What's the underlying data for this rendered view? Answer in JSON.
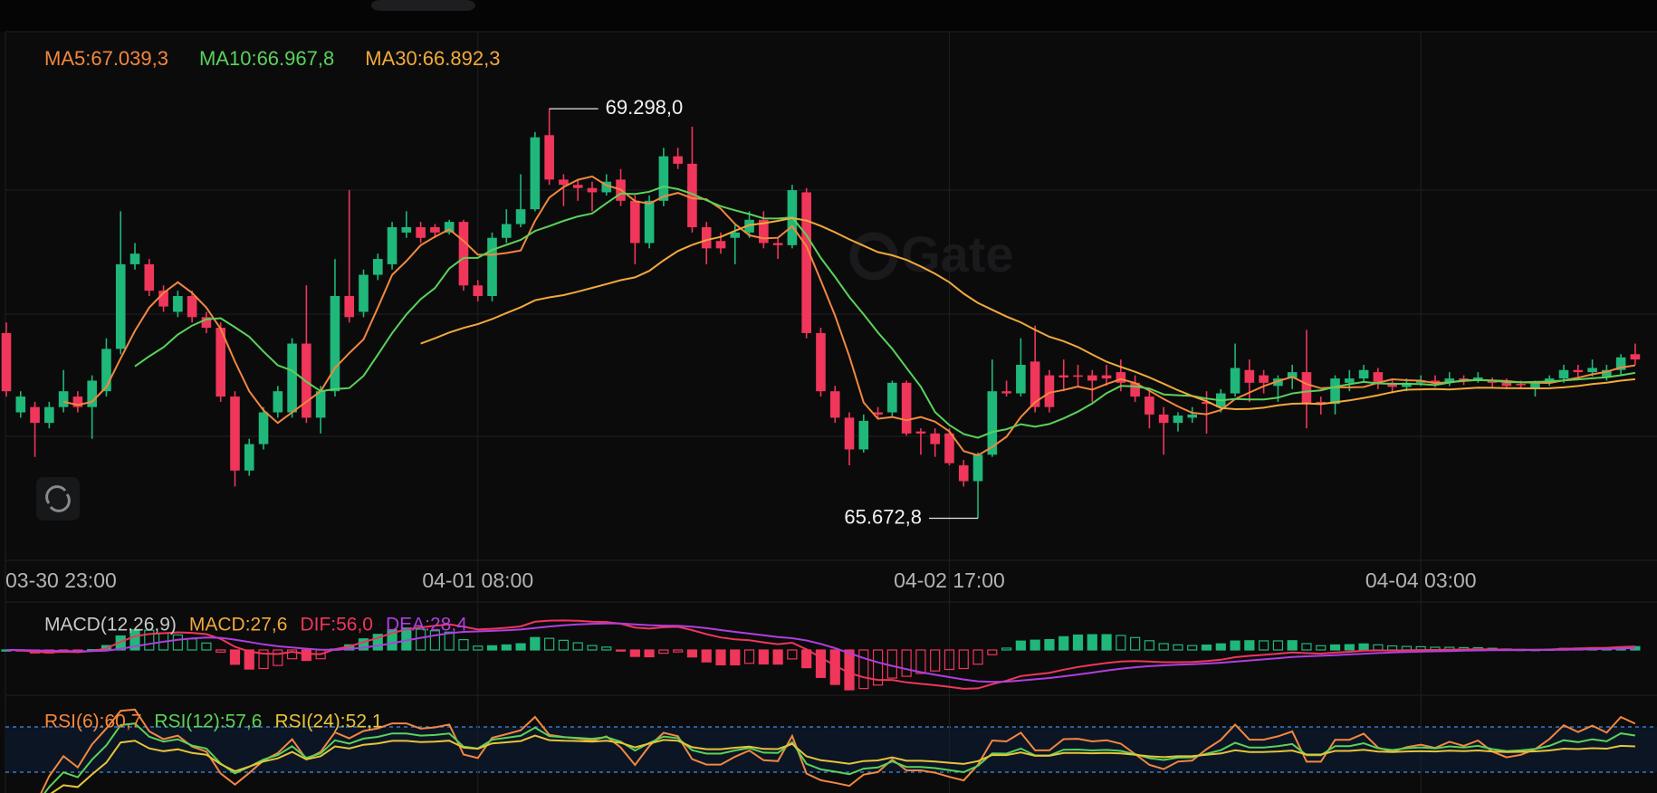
{
  "chart_data": {
    "type": "candlestick",
    "legend": [
      {
        "text": "MA5:67.039,3",
        "color": "#f3873f"
      },
      {
        "text": "MA10:66.967,8",
        "color": "#5ad25a"
      },
      {
        "text": "MA30:66.892,3",
        "color": "#f2a93b"
      }
    ],
    "categories": [
      "03-30 23:00",
      null,
      null,
      null,
      null,
      null,
      null,
      null,
      null,
      null,
      null,
      null,
      null,
      null,
      null,
      null,
      null,
      null,
      null,
      null,
      null,
      null,
      null,
      null,
      null,
      null,
      null,
      null,
      null,
      null,
      null,
      null,
      null,
      "04-01 08:00",
      null,
      null,
      null,
      null,
      null,
      null,
      null,
      null,
      null,
      null,
      null,
      null,
      null,
      null,
      null,
      null,
      null,
      null,
      null,
      null,
      null,
      null,
      null,
      null,
      null,
      null,
      null,
      null,
      null,
      null,
      null,
      null,
      "04-02 17:00",
      null,
      null,
      null,
      null,
      null,
      null,
      null,
      null,
      null,
      null,
      null,
      null,
      null,
      null,
      null,
      null,
      null,
      null,
      null,
      null,
      null,
      null,
      null,
      null,
      null,
      null,
      null,
      null,
      null,
      null,
      null,
      null,
      "04-04 03:00",
      null,
      null,
      null,
      null,
      null,
      null,
      null,
      null,
      null,
      null,
      null,
      null,
      null,
      null,
      null
    ],
    "candles": [
      [
        67.312,
        67.406,
        66.75,
        66.797
      ],
      [
        66.61,
        66.797,
        66.563,
        66.75
      ],
      [
        66.657,
        66.703,
        66.216,
        66.517
      ],
      [
        66.517,
        66.703,
        66.469,
        66.657
      ],
      [
        66.657,
        66.985,
        66.61,
        66.797
      ],
      [
        66.75,
        66.797,
        66.61,
        66.657
      ],
      [
        66.657,
        66.938,
        66.376,
        66.891
      ],
      [
        66.797,
        67.266,
        66.75,
        67.172
      ],
      [
        67.172,
        68.39,
        67.125,
        67.921
      ],
      [
        67.921,
        68.109,
        67.874,
        68.015
      ],
      [
        67.921,
        67.968,
        67.64,
        67.687
      ],
      [
        67.687,
        67.734,
        67.5,
        67.547
      ],
      [
        67.5,
        67.687,
        67.453,
        67.64
      ],
      [
        67.64,
        67.687,
        67.406,
        67.453
      ],
      [
        67.453,
        67.5,
        67.312,
        67.359
      ],
      [
        67.359,
        67.406,
        66.703,
        66.75
      ],
      [
        66.75,
        66.797,
        65.954,
        66.095
      ],
      [
        66.095,
        66.376,
        66.048,
        66.329
      ],
      [
        66.329,
        66.657,
        66.282,
        66.61
      ],
      [
        66.61,
        66.844,
        66.563,
        66.797
      ],
      [
        66.61,
        67.266,
        66.563,
        67.219
      ],
      [
        67.219,
        67.734,
        66.517,
        66.563
      ],
      [
        66.563,
        66.844,
        66.423,
        66.797
      ],
      [
        66.797,
        67.968,
        66.75,
        67.64
      ],
      [
        67.64,
        68.577,
        67.406,
        67.453
      ],
      [
        67.5,
        67.874,
        67.453,
        67.828
      ],
      [
        67.828,
        68.015,
        67.781,
        67.968
      ],
      [
        67.921,
        68.296,
        67.874,
        68.249
      ],
      [
        68.202,
        68.39,
        68.155,
        68.249
      ],
      [
        68.249,
        68.296,
        68.109,
        68.155
      ],
      [
        68.249,
        68.277,
        68.155,
        68.202
      ],
      [
        68.202,
        68.315,
        68.184,
        68.296
      ],
      [
        68.296,
        68.315,
        67.687,
        67.734
      ],
      [
        67.734,
        67.781,
        67.593,
        67.64
      ],
      [
        67.64,
        68.202,
        67.593,
        68.155
      ],
      [
        68.155,
        68.408,
        68.109,
        68.277
      ],
      [
        68.277,
        68.718,
        68.249,
        68.408
      ],
      [
        68.408,
        69.092,
        68.39,
        69.045
      ],
      [
        69.064,
        69.298,
        68.624,
        68.671
      ],
      [
        68.671,
        68.718,
        68.436,
        68.624
      ],
      [
        68.624,
        68.671,
        68.483,
        68.596
      ],
      [
        68.596,
        68.652,
        68.39,
        68.558
      ],
      [
        68.558,
        68.718,
        68.53,
        68.652
      ],
      [
        68.671,
        68.764,
        68.436,
        68.483
      ],
      [
        68.483,
        68.53,
        67.921,
        68.109
      ],
      [
        68.109,
        68.53,
        68.062,
        68.483
      ],
      [
        68.483,
        68.952,
        68.436,
        68.877
      ],
      [
        68.877,
        68.952,
        68.764,
        68.811
      ],
      [
        68.811,
        69.139,
        68.202,
        68.249
      ],
      [
        68.249,
        68.296,
        67.921,
        68.062
      ],
      [
        68.127,
        68.202,
        68.015,
        68.062
      ],
      [
        68.155,
        68.277,
        67.921,
        68.202
      ],
      [
        68.202,
        68.39,
        68.155,
        68.315
      ],
      [
        68.315,
        68.39,
        68.062,
        68.109
      ],
      [
        68.109,
        68.155,
        67.968,
        68.09
      ],
      [
        68.09,
        68.624,
        68.062,
        68.577
      ],
      [
        68.558,
        68.596,
        67.266,
        67.312
      ],
      [
        67.312,
        67.359,
        66.75,
        66.797
      ],
      [
        66.797,
        66.844,
        66.517,
        66.563
      ],
      [
        66.563,
        66.61,
        66.141,
        66.282
      ],
      [
        66.282,
        66.591,
        66.254,
        66.535
      ],
      [
        66.61,
        66.657,
        66.563,
        66.591
      ],
      [
        66.61,
        66.891,
        66.563,
        66.872
      ],
      [
        66.872,
        66.891,
        66.404,
        66.423
      ],
      [
        66.441,
        66.469,
        66.235,
        66.423
      ],
      [
        66.423,
        66.469,
        66.216,
        66.329
      ],
      [
        66.423,
        66.469,
        66.141,
        66.16
      ],
      [
        66.141,
        66.188,
        65.954,
        66.001
      ],
      [
        66.001,
        66.254,
        65.6728,
        66.235
      ],
      [
        66.235,
        67.078,
        66.216,
        66.797
      ],
      [
        66.797,
        66.891,
        66.75,
        66.778
      ],
      [
        66.778,
        67.266,
        66.75,
        67.031
      ],
      [
        67.06,
        67.378,
        66.61,
        66.657
      ],
      [
        66.938,
        66.985,
        66.61,
        66.657
      ],
      [
        66.938,
        67.078,
        66.797,
        66.919
      ],
      [
        66.938,
        67.031,
        66.844,
        66.928
      ],
      [
        66.938,
        66.985,
        66.703,
        66.891
      ],
      [
        66.938,
        67.031,
        66.844,
        66.91
      ],
      [
        66.966,
        67.078,
        66.797,
        66.872
      ],
      [
        66.872,
        66.938,
        66.703,
        66.75
      ],
      [
        66.75,
        66.797,
        66.469,
        66.591
      ],
      [
        66.591,
        66.657,
        66.235,
        66.517
      ],
      [
        66.517,
        66.61,
        66.441,
        66.582
      ],
      [
        66.563,
        66.657,
        66.517,
        66.591
      ],
      [
        66.703,
        66.797,
        66.423,
        66.685
      ],
      [
        66.657,
        66.816,
        66.61,
        66.778
      ],
      [
        66.778,
        67.219,
        66.75,
        67.003
      ],
      [
        66.985,
        67.078,
        66.703,
        66.872
      ],
      [
        66.938,
        66.985,
        66.778,
        66.872
      ],
      [
        66.844,
        66.938,
        66.703,
        66.91
      ],
      [
        66.91,
        67.031,
        66.816,
        66.966
      ],
      [
        66.966,
        67.34,
        66.469,
        66.685
      ],
      [
        66.703,
        66.75,
        66.591,
        66.685
      ],
      [
        66.685,
        66.938,
        66.591,
        66.91
      ],
      [
        66.872,
        66.985,
        66.797,
        66.91
      ],
      [
        66.91,
        67.031,
        66.872,
        66.985
      ],
      [
        66.966,
        67.003,
        66.816,
        66.872
      ],
      [
        66.872,
        66.91,
        66.778,
        66.835
      ],
      [
        66.835,
        66.91,
        66.797,
        66.872
      ],
      [
        66.872,
        66.938,
        66.844,
        66.891
      ],
      [
        66.891,
        66.938,
        66.835,
        66.872
      ],
      [
        66.872,
        66.966,
        66.844,
        66.91
      ],
      [
        66.91,
        66.938,
        66.853,
        66.891
      ],
      [
        66.891,
        66.966,
        66.872,
        66.919
      ],
      [
        66.891,
        66.919,
        66.835,
        66.872
      ],
      [
        66.872,
        66.91,
        66.816,
        66.844
      ],
      [
        66.863,
        66.891,
        66.816,
        66.853
      ],
      [
        66.816,
        66.891,
        66.75,
        66.872
      ],
      [
        66.872,
        66.938,
        66.844,
        66.91
      ],
      [
        66.91,
        67.031,
        66.872,
        66.985
      ],
      [
        66.985,
        67.031,
        66.91,
        66.966
      ],
      [
        66.966,
        67.078,
        66.928,
        67.003
      ],
      [
        66.928,
        67.031,
        66.891,
        66.985
      ],
      [
        66.985,
        67.125,
        66.938,
        67.097
      ],
      [
        67.125,
        67.219,
        67.031,
        67.078
      ]
    ],
    "up_color": "#20b87a",
    "down_color": "#f0365a",
    "ylim": [
      65.3,
      69.98
    ],
    "high_label": "69.298,0",
    "low_label": "65.672,8",
    "watermark": "Gate",
    "macd": {
      "labels": [
        {
          "text": "MACD(12,26,9)",
          "color": "#c8c8c8"
        },
        {
          "text": "MACD:27,6",
          "color": "#f2a93b"
        },
        {
          "text": "DIF:56,0",
          "color": "#f0365a"
        },
        {
          "text": "DEA:28,4",
          "color": "#b03ee0"
        }
      ]
    },
    "rsi": {
      "labels": [
        {
          "text": "RSI(6):60,7",
          "color": "#f3873f"
        },
        {
          "text": "RSI(12):57,6",
          "color": "#5ad25a"
        },
        {
          "text": "RSI(24):52,1",
          "color": "#e6c43a"
        }
      ]
    }
  }
}
